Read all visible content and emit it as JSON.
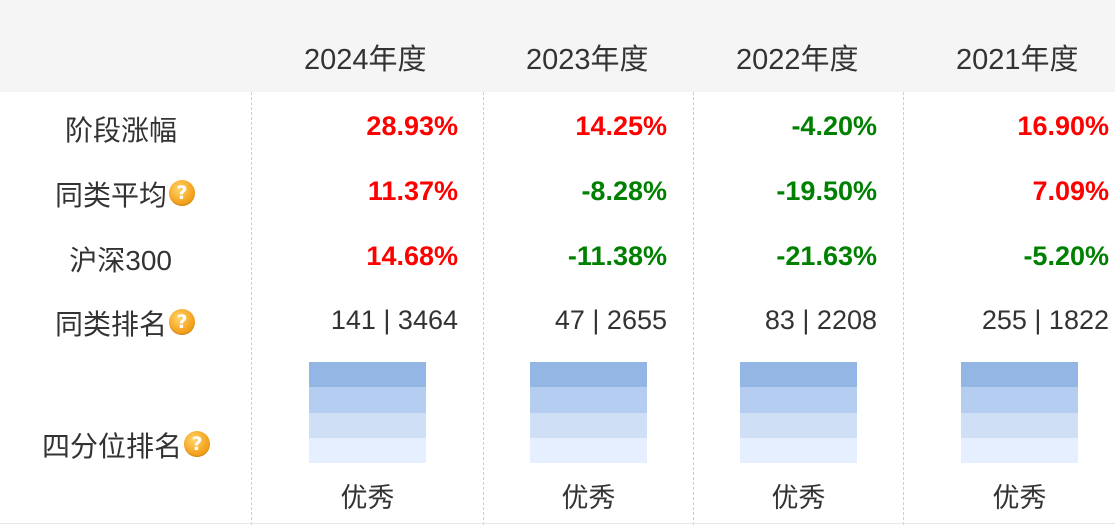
{
  "columns": [
    "2024年度",
    "2023年度",
    "2022年度",
    "2021年度"
  ],
  "rows": [
    {
      "label": "阶段涨幅",
      "help": false,
      "type": "pct",
      "values": [
        "28.93%",
        "14.25%",
        "-4.20%",
        "16.90%"
      ],
      "signs": [
        "pos",
        "pos",
        "neg",
        "pos"
      ]
    },
    {
      "label": "同类平均",
      "help": true,
      "type": "pct",
      "values": [
        "11.37%",
        "-8.28%",
        "-19.50%",
        "7.09%"
      ],
      "signs": [
        "pos",
        "neg",
        "neg",
        "pos"
      ]
    },
    {
      "label": "沪深300",
      "help": false,
      "type": "pct",
      "values": [
        "14.68%",
        "-11.38%",
        "-21.63%",
        "-5.20%"
      ],
      "signs": [
        "pos",
        "neg",
        "neg",
        "neg"
      ]
    },
    {
      "label": "同类排名",
      "help": true,
      "type": "rank",
      "values": [
        "141 | 3464",
        "47 | 2655",
        "83 | 2208",
        "255 | 1822"
      ]
    }
  ],
  "quartile": {
    "label": "四分位排名",
    "help": true,
    "values": [
      "优秀",
      "优秀",
      "优秀",
      "优秀"
    ],
    "level": [
      4,
      4,
      4,
      4
    ]
  },
  "colors": {
    "positive": "#ff0000",
    "negative": "#008000",
    "header_bg": "#f5f5f5",
    "quartile_shades": [
      "#93b6e5",
      "#b4cdf0",
      "#cfdff6",
      "#e6efff"
    ]
  },
  "icons": {
    "help": "help-circle-icon",
    "help_glyph": "?"
  }
}
